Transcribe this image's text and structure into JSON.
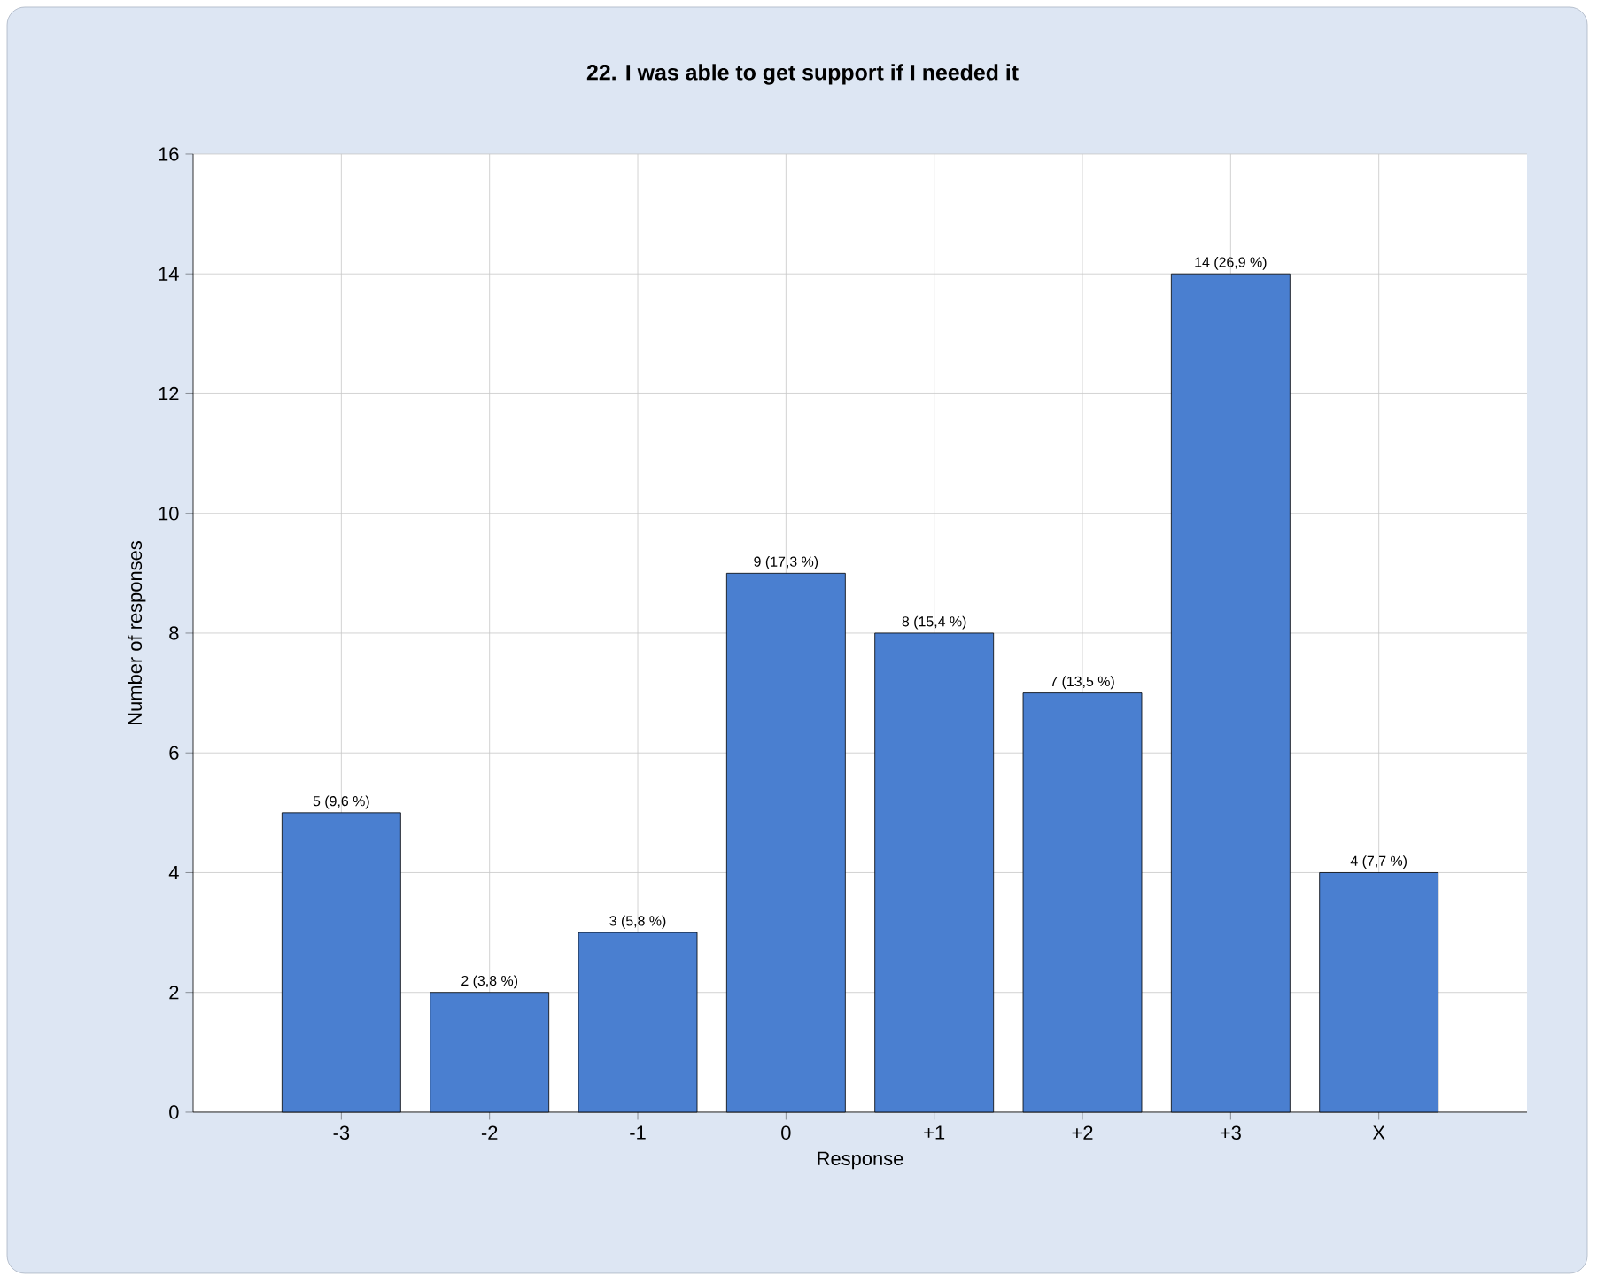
{
  "chart_data": {
    "type": "bar",
    "title": "22. I was able to get support if I needed it",
    "xlabel": "Response",
    "ylabel": "Number of responses",
    "categories": [
      "-3",
      "-2",
      "-1",
      "0",
      "+1",
      "+2",
      "+3",
      "X"
    ],
    "values": [
      5,
      2,
      3,
      9,
      8,
      7,
      14,
      4
    ],
    "value_labels": [
      "5 (9,6 %)",
      "2 (3,8 %)",
      "3 (5,8 %)",
      "9 (17,3 %)",
      "8 (15,4 %)",
      "7 (13,5 %)",
      "14 (26,9 %)",
      "4 (7,7 %)"
    ],
    "color": "#4a7fd0",
    "ylim": [
      0,
      16
    ],
    "yticks": [
      0,
      2,
      4,
      6,
      8,
      10,
      12,
      14,
      16
    ],
    "grid": true
  }
}
